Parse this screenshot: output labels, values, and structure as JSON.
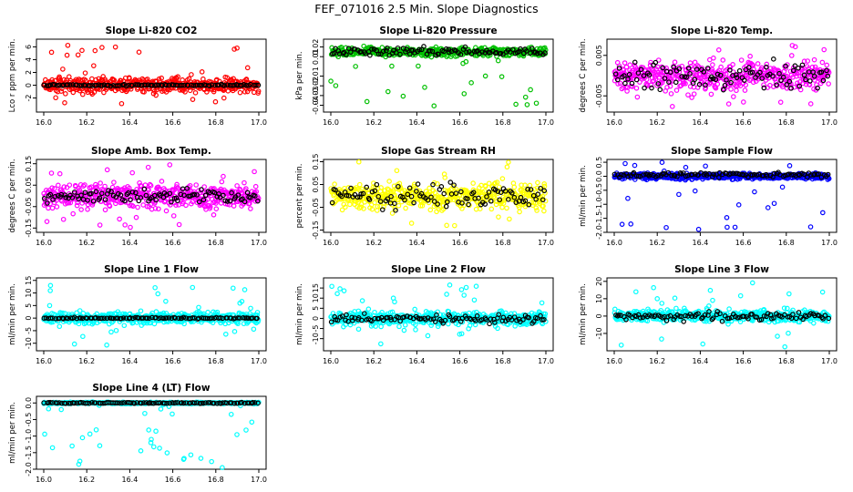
{
  "page_title": "FEF_071016  2.5 Min. Slope Diagnostics",
  "chart_data": [
    {
      "type": "scatter",
      "title": "Slope Li-820 CO2",
      "ylabel": "Lco r ppm per min.",
      "xlim": [
        16.0,
        17.0
      ],
      "ylim": [
        -4.2,
        7.2
      ],
      "xticks": [
        "16.0",
        "16.2",
        "16.4",
        "16.6",
        "16.8",
        "17.0"
      ],
      "yticks": [
        "-2",
        "0",
        "2",
        "4",
        "6"
      ],
      "color": "#ff0000",
      "series": [
        {
          "name": "points",
          "center": 0,
          "spread": 1.0,
          "outlier_range": [
            -3.5,
            6.3
          ],
          "density": 480
        },
        {
          "name": "black points",
          "color": "#000000",
          "center": 0,
          "spread": 0.1,
          "density": 100
        }
      ]
    },
    {
      "type": "scatter",
      "title": "Slope Li-820 Pressure",
      "ylabel": "kPa per min.",
      "xlim": [
        16.0,
        17.0
      ],
      "ylim": [
        -0.047,
        0.028
      ],
      "xticks": [
        "16.0",
        "16.2",
        "16.4",
        "16.6",
        "16.8",
        "17.0"
      ],
      "yticks": [
        "-0.04",
        "-0.03",
        "-0.02",
        "-0.01",
        "0.01",
        "0.02"
      ],
      "color": "#00c000",
      "series": [
        {
          "name": "points",
          "center": 0.015,
          "spread": 0.004,
          "outlier_range": [
            -0.045,
            0.022
          ],
          "density": 480
        },
        {
          "name": "black points",
          "color": "#000000",
          "center": 0.015,
          "spread": 0.004,
          "density": 100
        }
      ]
    },
    {
      "type": "scatter",
      "title": "Slope Li-820 Temp.",
      "ylabel": "degrees C per min.",
      "xlim": [
        16.0,
        17.0
      ],
      "ylim": [
        -0.009,
        0.009
      ],
      "xticks": [
        "16.0",
        "16.2",
        "16.4",
        "16.6",
        "16.8",
        "17.0"
      ],
      "yticks": [
        "-0.005",
        "0.005"
      ],
      "color": "#ff00ff",
      "series": [
        {
          "name": "points",
          "center": 0.0,
          "spread": 0.003,
          "outlier_range": [
            -0.008,
            0.008
          ],
          "density": 480
        },
        {
          "name": "black points",
          "color": "#000000",
          "center": 0.0,
          "spread": 0.003,
          "density": 100
        }
      ]
    },
    {
      "type": "scatter",
      "title": "Slope Amb. Box Temp.",
      "ylabel": "degrees C per min.",
      "xlim": [
        16.0,
        17.0
      ],
      "ylim": [
        -0.17,
        0.17
      ],
      "xticks": [
        "16.0",
        "16.2",
        "16.4",
        "16.6",
        "16.8",
        "17.0"
      ],
      "yticks": [
        "-0.15",
        "-0.05",
        "0.05",
        "0.15"
      ],
      "color": "#ff00ff",
      "series": [
        {
          "name": "points",
          "center": 0.0,
          "spread": 0.05,
          "outlier_range": [
            -0.15,
            0.15
          ],
          "density": 480
        },
        {
          "name": "black points",
          "color": "#000000",
          "center": 0.0,
          "spread": 0.03,
          "density": 100
        }
      ]
    },
    {
      "type": "scatter",
      "title": "Slope Gas Stream RH",
      "ylabel": "percent per min.",
      "xlim": [
        16.0,
        17.0
      ],
      "ylim": [
        -0.16,
        0.16
      ],
      "xticks": [
        "16.0",
        "16.2",
        "16.4",
        "16.6",
        "16.8",
        "17.0"
      ],
      "yticks": [
        "-0.15",
        "-0.05",
        "0.05",
        "0.15"
      ],
      "color": "#ffff00",
      "series": [
        {
          "name": "points",
          "center": 0.0,
          "spread": 0.05,
          "outlier_range": [
            -0.15,
            0.15
          ],
          "density": 480
        },
        {
          "name": "black points",
          "color": "#000000",
          "center": 0.0,
          "spread": 0.05,
          "density": 100
        }
      ]
    },
    {
      "type": "scatter",
      "title": "Slope Sample Flow",
      "ylabel": "ml/min per min.",
      "xlim": [
        16.0,
        17.0
      ],
      "ylim": [
        -2.0,
        0.6
      ],
      "xticks": [
        "16.0",
        "16.2",
        "16.4",
        "16.6",
        "16.8",
        "17.0"
      ],
      "yticks": [
        "-2.0",
        "-1.5",
        "-1.0",
        "-0.5",
        "0.0",
        "0.5"
      ],
      "color": "#0000ff",
      "series": [
        {
          "name": "points",
          "center": 0.0,
          "spread": 0.1,
          "outlier_range": [
            -1.9,
            0.5
          ],
          "density": 480
        },
        {
          "name": "black points",
          "color": "#000000",
          "center": 0.05,
          "spread": 0.08,
          "density": 100
        }
      ]
    },
    {
      "type": "scatter",
      "title": "Slope Line 1 Flow",
      "ylabel": "ml/min per min.",
      "xlim": [
        16.0,
        17.0
      ],
      "ylim": [
        -13,
        16
      ],
      "xticks": [
        "16.0",
        "16.2",
        "16.4",
        "16.6",
        "16.8",
        "17.0"
      ],
      "yticks": [
        "-10",
        "-5",
        "0",
        "5",
        "10",
        "15"
      ],
      "color": "#00ffff",
      "series": [
        {
          "name": "points",
          "center": 0,
          "spread": 2.0,
          "outlier_range": [
            -11,
            14
          ],
          "density": 480
        },
        {
          "name": "black points",
          "color": "#000000",
          "center": 0,
          "spread": 0.2,
          "density": 100
        }
      ]
    },
    {
      "type": "scatter",
      "title": "Slope Line 2 Flow",
      "ylabel": "ml/min per min.",
      "xlim": [
        16.0,
        17.0
      ],
      "ylim": [
        -16,
        20
      ],
      "xticks": [
        "16.0",
        "16.2",
        "16.4",
        "16.6",
        "16.8",
        "17.0"
      ],
      "yticks": [
        "-10",
        "-5",
        "0",
        "5",
        "10",
        "15"
      ],
      "color": "#00ffff",
      "series": [
        {
          "name": "points",
          "center": 0,
          "spread": 3.0,
          "outlier_range": [
            -13,
            18
          ],
          "density": 480
        },
        {
          "name": "black points",
          "color": "#000000",
          "center": 0,
          "spread": 2.0,
          "density": 100
        }
      ]
    },
    {
      "type": "scatter",
      "title": "Slope Line 3 Flow",
      "ylabel": "ml/min per min.",
      "xlim": [
        16.0,
        17.0
      ],
      "ylim": [
        -20,
        22
      ],
      "xticks": [
        "16.0",
        "16.2",
        "16.4",
        "16.6",
        "16.8",
        "17.0"
      ],
      "yticks": [
        "-10",
        "0",
        "10",
        "20"
      ],
      "color": "#00ffff",
      "series": [
        {
          "name": "points",
          "center": 0,
          "spread": 3.0,
          "outlier_range": [
            -18,
            20
          ],
          "density": 480
        },
        {
          "name": "black points",
          "color": "#000000",
          "center": 0,
          "spread": 2.0,
          "density": 100
        }
      ]
    },
    {
      "type": "scatter",
      "title": "Slope Line 4 (LT) Flow",
      "ylabel": "ml/min per min.",
      "xlim": [
        16.0,
        17.0
      ],
      "ylim": [
        -2.0,
        0.2
      ],
      "xticks": [
        "16.0",
        "16.2",
        "16.4",
        "16.6",
        "16.8",
        "17.0"
      ],
      "yticks": [
        "-2.0",
        "-1.5",
        "-1.0",
        "-0.5",
        "0.0"
      ],
      "color": "#00ffff",
      "series": [
        {
          "name": "points",
          "center": 0.0,
          "spread": 0.02,
          "outlier_range": [
            -1.95,
            0.05
          ],
          "outliers": [
            [
              16.18,
              -1.05
            ],
            [
              16.5,
              -1.1
            ],
            [
              16.83,
              -1.95
            ]
          ],
          "density": 480
        },
        {
          "name": "black points",
          "color": "#000000",
          "center": 0.0,
          "spread": 0.015,
          "density": 100
        }
      ]
    }
  ]
}
